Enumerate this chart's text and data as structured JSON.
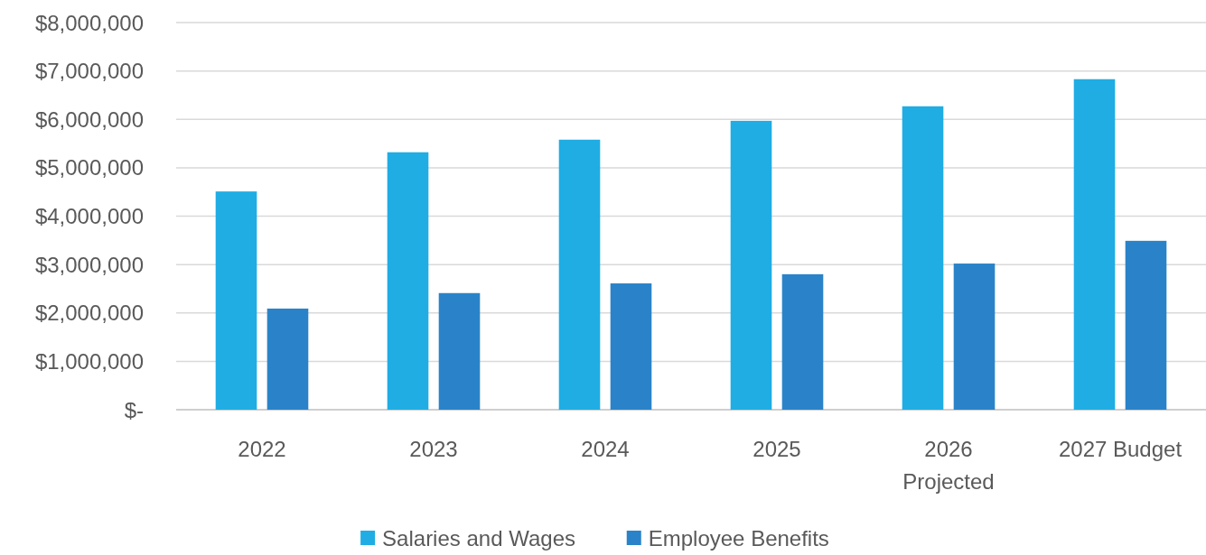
{
  "chart_data": {
    "type": "bar",
    "categories": [
      "2022",
      "2023",
      "2024",
      "2025",
      "2026 Projected",
      "2027 Budget"
    ],
    "series": [
      {
        "name": "Salaries and Wages",
        "color": "#1fade4",
        "values": [
          4510000,
          5320000,
          5580000,
          5970000,
          6270000,
          6830000
        ]
      },
      {
        "name": "Employee Benefits",
        "color": "#2a83c8",
        "values": [
          2090000,
          2410000,
          2610000,
          2800000,
          3020000,
          3490000
        ]
      }
    ],
    "ylim": [
      0,
      8000000
    ],
    "yticks": [
      {
        "value": 0,
        "label": "$-"
      },
      {
        "value": 1000000,
        "label": "$1,000,000"
      },
      {
        "value": 2000000,
        "label": "$2,000,000"
      },
      {
        "value": 3000000,
        "label": "$3,000,000"
      },
      {
        "value": 4000000,
        "label": "$4,000,000"
      },
      {
        "value": 5000000,
        "label": "$5,000,000"
      },
      {
        "value": 6000000,
        "label": "$6,000,000"
      },
      {
        "value": 7000000,
        "label": "$7,000,000"
      },
      {
        "value": 8000000,
        "label": "$8,000,000"
      }
    ],
    "grid": "y",
    "legend": "bottom"
  }
}
